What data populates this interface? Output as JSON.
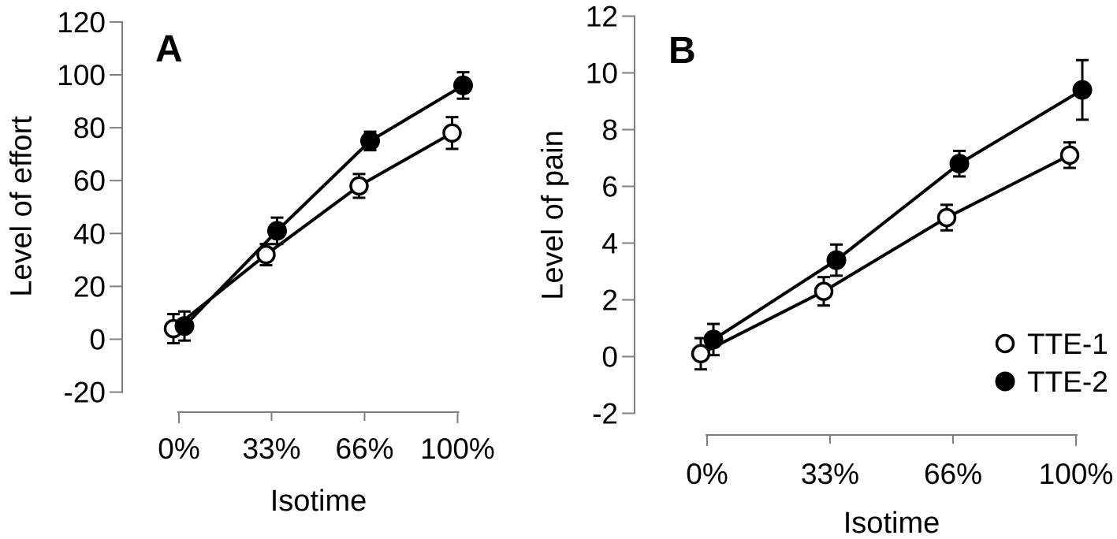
{
  "figure": {
    "background": "#ffffff",
    "text_color": "#000000",
    "axis_color": "#7f7f7f",
    "series_color": "#000000"
  },
  "chart_data": [
    {
      "type": "line",
      "panel_label": "A",
      "title": "",
      "xlabel": "Isotime",
      "ylabel": "Level of effort",
      "categories": [
        "0%",
        "33%",
        "66%",
        "100%"
      ],
      "ylim": [
        -20,
        120
      ],
      "yticks": [
        -20,
        0,
        20,
        40,
        60,
        80,
        100,
        120
      ],
      "grid": false,
      "legend": null,
      "series": [
        {
          "name": "TTE-1",
          "marker": "open-circle",
          "values": [
            4,
            32,
            58,
            78
          ],
          "errors": [
            5.5,
            4,
            4.5,
            6
          ]
        },
        {
          "name": "TTE-2",
          "marker": "filled-circle",
          "values": [
            5,
            41,
            75,
            96
          ],
          "errors": [
            5.5,
            5,
            3.5,
            5
          ]
        }
      ]
    },
    {
      "type": "line",
      "panel_label": "B",
      "title": "",
      "xlabel": "Isotime",
      "ylabel": "Level of pain",
      "categories": [
        "0%",
        "33%",
        "66%",
        "100%"
      ],
      "ylim": [
        -2,
        12
      ],
      "yticks": [
        -2,
        0,
        2,
        4,
        6,
        8,
        10,
        12
      ],
      "grid": false,
      "legend": {
        "position": "lower-right",
        "entries": [
          {
            "label": "TTE-1",
            "marker": "open-circle"
          },
          {
            "label": "TTE-2",
            "marker": "filled-circle"
          }
        ]
      },
      "series": [
        {
          "name": "TTE-1",
          "marker": "open-circle",
          "values": [
            0.1,
            2.3,
            4.9,
            7.1
          ],
          "errors": [
            0.55,
            0.5,
            0.45,
            0.45
          ]
        },
        {
          "name": "TTE-2",
          "marker": "filled-circle",
          "values": [
            0.6,
            3.4,
            6.8,
            9.4
          ],
          "errors": [
            0.55,
            0.55,
            0.45,
            1.05
          ]
        }
      ]
    }
  ]
}
